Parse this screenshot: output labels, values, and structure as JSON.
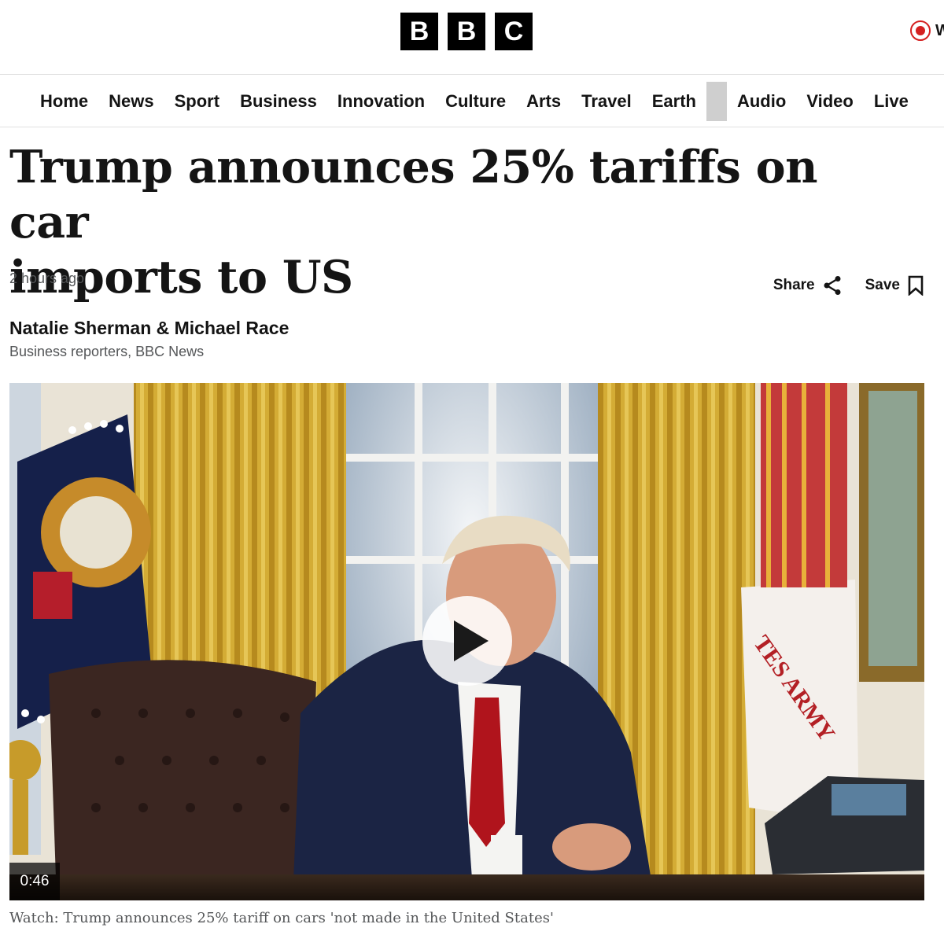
{
  "brand": {
    "logo_letters": [
      "B",
      "B",
      "C"
    ],
    "live_label": "W"
  },
  "nav": {
    "items": [
      "Home",
      "News",
      "Sport",
      "Business",
      "Innovation",
      "Culture",
      "Arts",
      "Travel",
      "Earth",
      "Audio",
      "Video",
      "Live"
    ]
  },
  "article": {
    "headline_line1": "Trump announces 25% tariffs on car",
    "headline_line2": "imports to US",
    "timestamp": "2 hours ago",
    "share_label": "Share",
    "save_label": "Save",
    "author": "Natalie Sherman & Michael Race",
    "author_role": "Business reporters, BBC News"
  },
  "media": {
    "duration": "0:46",
    "caption": "Watch: Trump announces 25% tariff on cars 'not made in the United States'",
    "flag_text": "TES ARMY"
  },
  "colors": {
    "live_red": "#d42020",
    "curtain_gold": "#d8b23a",
    "suit_navy": "#1b2444",
    "tie_red": "#b0141c"
  },
  "icons": {
    "share": "share-icon",
    "save": "bookmark-icon",
    "play": "play-icon",
    "live": "live-dot-icon"
  }
}
